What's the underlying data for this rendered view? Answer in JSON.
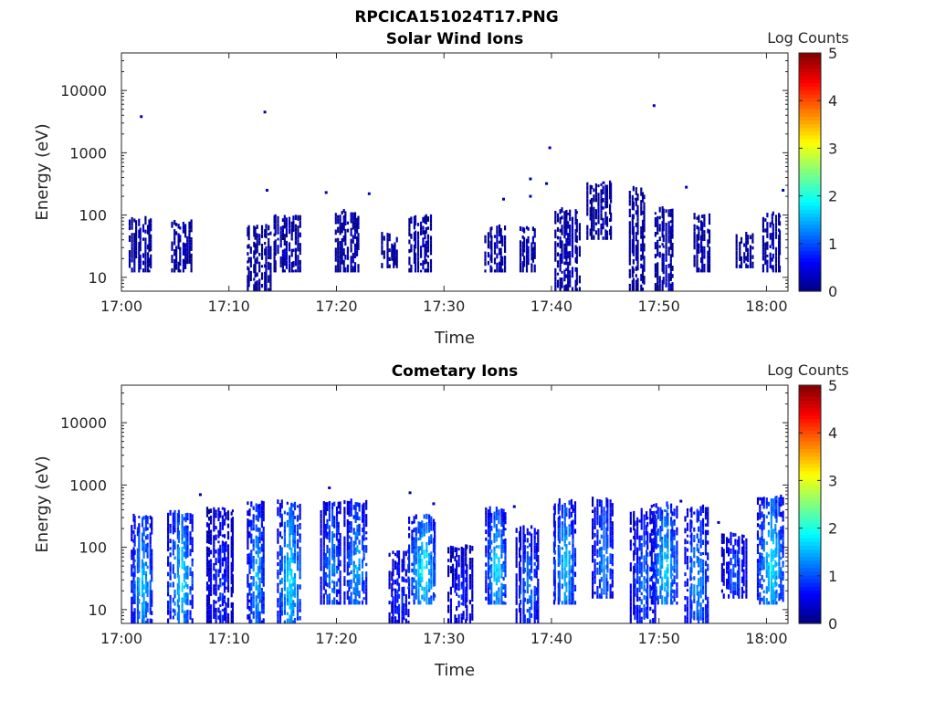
{
  "figure": {
    "title": "RPCICA151024T17.PNG"
  },
  "chart_data": [
    {
      "type": "heatmap",
      "title": "Solar Wind Ions",
      "xlabel": "Time",
      "ylabel": "Energy (eV)",
      "x_ticks": [
        "17:00",
        "17:10",
        "17:20",
        "17:30",
        "17:40",
        "17:50",
        "18:00"
      ],
      "x_tick_minutes": [
        0,
        10,
        20,
        30,
        40,
        50,
        60
      ],
      "xlim_minutes": [
        0,
        62
      ],
      "y_scale": "log",
      "y_ticks": [
        "10",
        "100",
        "1000",
        "10000"
      ],
      "y_tick_values": [
        10,
        100,
        1000,
        10000
      ],
      "ylim": [
        6,
        40000
      ],
      "colorbar": {
        "label": "Log Counts",
        "min": 0,
        "max": 5,
        "ticks": [
          "0",
          "1",
          "2",
          "3",
          "4",
          "5"
        ]
      },
      "bursts": [
        {
          "t": 1.8,
          "emin": 12,
          "emax": 80,
          "level": 0.25
        },
        {
          "t": 5.6,
          "emin": 12,
          "emax": 75,
          "level": 0.25
        },
        {
          "t": 12.8,
          "emin": 6,
          "emax": 60,
          "level": 0.2
        },
        {
          "t": 15.4,
          "emin": 12,
          "emax": 90,
          "level": 0.3
        },
        {
          "t": 21.0,
          "emin": 12,
          "emax": 110,
          "level": 0.3
        },
        {
          "t": 25.0,
          "emin": 14,
          "emax": 45,
          "level": 0.2
        },
        {
          "t": 27.8,
          "emin": 12,
          "emax": 90,
          "level": 0.3
        },
        {
          "t": 34.8,
          "emin": 12,
          "emax": 60,
          "level": 0.25
        },
        {
          "t": 37.8,
          "emin": 12,
          "emax": 60,
          "level": 0.25
        },
        {
          "t": 41.5,
          "emin": 6,
          "emax": 110,
          "level": 0.3
        },
        {
          "t": 44.5,
          "emin": 40,
          "emax": 300,
          "level": 0.2
        },
        {
          "t": 48.0,
          "emin": 6,
          "emax": 250,
          "level": 0.2
        },
        {
          "t": 50.5,
          "emin": 6,
          "emax": 120,
          "level": 0.3
        },
        {
          "t": 54.0,
          "emin": 12,
          "emax": 100,
          "level": 0.25
        },
        {
          "t": 58.0,
          "emin": 14,
          "emax": 45,
          "level": 0.2
        },
        {
          "t": 60.5,
          "emin": 12,
          "emax": 100,
          "level": 0.3
        }
      ],
      "points": [
        {
          "t": 1.8,
          "e": 3800
        },
        {
          "t": 13.3,
          "e": 4500
        },
        {
          "t": 39.8,
          "e": 1200
        },
        {
          "t": 49.5,
          "e": 5700
        },
        {
          "t": 61.5,
          "e": 250
        },
        {
          "t": 13.5,
          "e": 250
        },
        {
          "t": 19.0,
          "e": 230
        },
        {
          "t": 23.0,
          "e": 220
        },
        {
          "t": 38.0,
          "e": 380
        },
        {
          "t": 38.0,
          "e": 200
        },
        {
          "t": 35.5,
          "e": 180
        },
        {
          "t": 39.5,
          "e": 320
        },
        {
          "t": 44.8,
          "e": 330
        },
        {
          "t": 47.8,
          "e": 180
        },
        {
          "t": 52.5,
          "e": 280
        }
      ]
    },
    {
      "type": "heatmap",
      "title": "Cometary Ions",
      "xlabel": "Time",
      "ylabel": "Energy (eV)",
      "x_ticks": [
        "17:00",
        "17:10",
        "17:20",
        "17:30",
        "17:40",
        "17:50",
        "18:00"
      ],
      "x_tick_minutes": [
        0,
        10,
        20,
        30,
        40,
        50,
        60
      ],
      "xlim_minutes": [
        0,
        62
      ],
      "y_scale": "log",
      "y_ticks": [
        "10",
        "100",
        "1000",
        "10000"
      ],
      "y_tick_values": [
        10,
        100,
        1000,
        10000
      ],
      "ylim": [
        6,
        40000
      ],
      "colorbar": {
        "label": "Log Counts",
        "min": 0,
        "max": 5,
        "ticks": [
          "0",
          "1",
          "2",
          "3",
          "4",
          "5"
        ]
      },
      "bursts": [
        {
          "t": 1.9,
          "emin": 6,
          "emax": 300,
          "level": 1.7
        },
        {
          "t": 5.5,
          "emin": 6,
          "emax": 350,
          "level": 1.8
        },
        {
          "t": 9.2,
          "emin": 6,
          "emax": 400,
          "level": 0.9
        },
        {
          "t": 12.5,
          "emin": 6,
          "emax": 500,
          "level": 1.6
        },
        {
          "t": 15.6,
          "emin": 6,
          "emax": 500,
          "level": 1.9
        },
        {
          "t": 19.5,
          "emin": 12,
          "emax": 500,
          "level": 1.4
        },
        {
          "t": 21.8,
          "emin": 12,
          "emax": 500,
          "level": 1.6
        },
        {
          "t": 25.8,
          "emin": 6,
          "emax": 80,
          "level": 0.9
        },
        {
          "t": 28.0,
          "emin": 12,
          "emax": 300,
          "level": 2.0
        },
        {
          "t": 31.5,
          "emin": 6,
          "emax": 100,
          "level": 0.8
        },
        {
          "t": 34.8,
          "emin": 12,
          "emax": 400,
          "level": 1.8
        },
        {
          "t": 37.8,
          "emin": 6,
          "emax": 200,
          "level": 1.3
        },
        {
          "t": 41.2,
          "emin": 12,
          "emax": 500,
          "level": 1.7
        },
        {
          "t": 44.8,
          "emin": 15,
          "emax": 550,
          "level": 1.4
        },
        {
          "t": 48.5,
          "emin": 6,
          "emax": 350,
          "level": 1.2
        },
        {
          "t": 50.5,
          "emin": 12,
          "emax": 450,
          "level": 1.8
        },
        {
          "t": 53.5,
          "emin": 6,
          "emax": 400,
          "level": 1.5
        },
        {
          "t": 57.0,
          "emin": 15,
          "emax": 150,
          "level": 1.1
        },
        {
          "t": 60.4,
          "emin": 12,
          "emax": 600,
          "level": 1.9
        }
      ],
      "points": [
        {
          "t": 7.3,
          "e": 700
        },
        {
          "t": 19.3,
          "e": 900
        },
        {
          "t": 26.8,
          "e": 750
        },
        {
          "t": 29.0,
          "e": 500
        },
        {
          "t": 36.5,
          "e": 450
        },
        {
          "t": 42.0,
          "e": 400
        },
        {
          "t": 52.0,
          "e": 550
        },
        {
          "t": 55.5,
          "e": 250
        }
      ]
    }
  ]
}
